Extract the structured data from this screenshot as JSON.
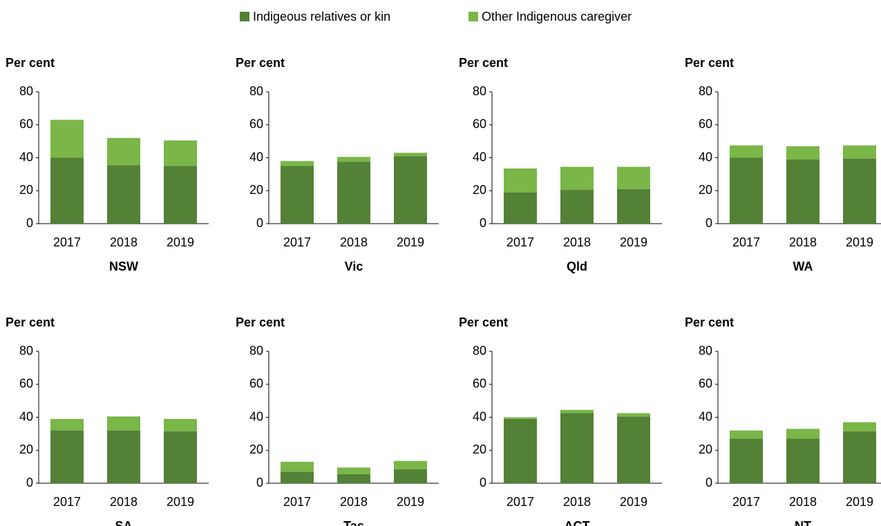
{
  "legend": [
    {
      "name": "Indigeous relatives or kin",
      "color": "#538135"
    },
    {
      "name": "Other Indigenous caregiver",
      "color": "#7ab648"
    }
  ],
  "chart_data": [
    {
      "type": "bar",
      "stacked": true,
      "title": "NSW",
      "ylabel": "Per cent",
      "categories": [
        "2017",
        "2018",
        "2019"
      ],
      "series": [
        {
          "values": [
            40,
            35.5,
            35
          ]
        },
        {
          "values": [
            23,
            16.5,
            15.5
          ]
        }
      ],
      "ylim": [
        0,
        80
      ],
      "yticks": [
        0,
        20,
        40,
        60,
        80
      ]
    },
    {
      "type": "bar",
      "stacked": true,
      "title": "Vic",
      "ylabel": "Per cent",
      "categories": [
        "2017",
        "2018",
        "2019"
      ],
      "series": [
        {
          "values": [
            35,
            37.5,
            41
          ]
        },
        {
          "values": [
            3,
            3,
            2
          ]
        }
      ],
      "ylim": [
        0,
        80
      ],
      "yticks": [
        0,
        20,
        40,
        60,
        80
      ]
    },
    {
      "type": "bar",
      "stacked": true,
      "title": "Qld",
      "ylabel": "Per cent",
      "categories": [
        "2017",
        "2018",
        "2019"
      ],
      "series": [
        {
          "values": [
            19,
            20.5,
            21
          ]
        },
        {
          "values": [
            14.5,
            14,
            13.5
          ]
        }
      ],
      "ylim": [
        0,
        80
      ],
      "yticks": [
        0,
        20,
        40,
        60,
        80
      ]
    },
    {
      "type": "bar",
      "stacked": true,
      "title": "WA",
      "ylabel": "Per cent",
      "categories": [
        "2017",
        "2018",
        "2019"
      ],
      "series": [
        {
          "values": [
            40,
            39,
            39.5
          ]
        },
        {
          "values": [
            7.5,
            8,
            8
          ]
        }
      ],
      "ylim": [
        0,
        80
      ],
      "yticks": [
        0,
        20,
        40,
        60,
        80
      ]
    },
    {
      "type": "bar",
      "stacked": true,
      "title": "SA",
      "ylabel": "Per cent",
      "categories": [
        "2017",
        "2018",
        "2019"
      ],
      "series": [
        {
          "values": [
            32,
            32,
            31.5
          ]
        },
        {
          "values": [
            7,
            8.5,
            7.5
          ]
        }
      ],
      "ylim": [
        0,
        80
      ],
      "yticks": [
        0,
        20,
        40,
        60,
        80
      ]
    },
    {
      "type": "bar",
      "stacked": true,
      "title": "Tas",
      "ylabel": "Per cent",
      "categories": [
        "2017",
        "2018",
        "2019"
      ],
      "series": [
        {
          "values": [
            7,
            5.5,
            8.5
          ]
        },
        {
          "values": [
            6,
            4,
            5
          ]
        }
      ],
      "ylim": [
        0,
        80
      ],
      "yticks": [
        0,
        20,
        40,
        60,
        80
      ]
    },
    {
      "type": "bar",
      "stacked": true,
      "title": "ACT",
      "ylabel": "Per cent",
      "categories": [
        "2017",
        "2018",
        "2019"
      ],
      "series": [
        {
          "values": [
            39,
            42.5,
            40.5
          ]
        },
        {
          "values": [
            1,
            2,
            2
          ]
        }
      ],
      "ylim": [
        0,
        80
      ],
      "yticks": [
        0,
        20,
        40,
        60,
        80
      ]
    },
    {
      "type": "bar",
      "stacked": true,
      "title": "NT",
      "ylabel": "Per cent",
      "categories": [
        "2017",
        "2018",
        "2019"
      ],
      "series": [
        {
          "values": [
            27,
            27,
            31.5
          ]
        },
        {
          "values": [
            5,
            6,
            5.5
          ]
        }
      ],
      "ylim": [
        0,
        80
      ],
      "yticks": [
        0,
        20,
        40,
        60,
        80
      ]
    }
  ]
}
